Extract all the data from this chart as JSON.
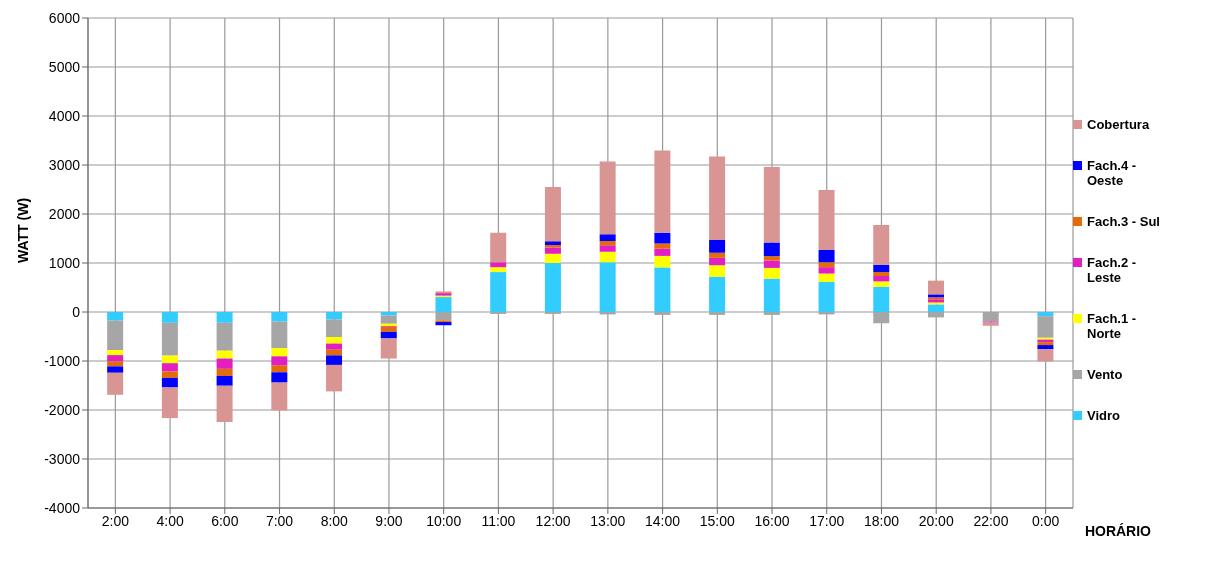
{
  "chart_data": {
    "type": "bar",
    "stacked": true,
    "xlabel": "HORÁRIO",
    "ylabel": "WATT  (W)",
    "categories": [
      "2:00",
      "4:00",
      "6:00",
      "7:00",
      "8:00",
      "9:00",
      "10:00",
      "11:00",
      "12:00",
      "13:00",
      "14:00",
      "15:00",
      "16:00",
      "17:00",
      "18:00",
      "20:00",
      "22:00",
      "0:00"
    ],
    "series": [
      {
        "name": "Vidro",
        "color": "#33ccff",
        "values": [
          -175,
          -220,
          -220,
          -195,
          -150,
          -70,
          305,
          815,
          1000,
          1015,
          910,
          720,
          680,
          615,
          515,
          155,
          null,
          -85
        ]
      },
      {
        "name": "Vento",
        "color": "#a6a6a6",
        "values": [
          -600,
          -670,
          -570,
          -540,
          -360,
          -170,
          -175,
          -40,
          -40,
          -50,
          -60,
          -60,
          -60,
          -50,
          -230,
          -110,
          -195,
          -440
        ]
      },
      {
        "name": "Fach.1 - Norte",
        "color": "#ffff00",
        "values": [
          -105,
          -155,
          -160,
          -170,
          -135,
          -50,
          30,
          100,
          190,
          215,
          235,
          235,
          220,
          170,
          110,
          40,
          null,
          -40
        ]
      },
      {
        "name": "Fach.2 - Leste",
        "color": "#e020c0",
        "values": [
          -130,
          -170,
          -210,
          -190,
          -125,
          -15,
          50,
          100,
          125,
          130,
          150,
          150,
          150,
          130,
          110,
          65,
          -20,
          -50
        ]
      },
      {
        "name": "Fach.3 - Sul",
        "color": "#e36c09",
        "values": [
          -100,
          -130,
          -145,
          -135,
          -115,
          -100,
          -30,
          null,
          50,
          90,
          105,
          105,
          90,
          100,
          80,
          40,
          null,
          -60
        ]
      },
      {
        "name": "Fach.4 - Oeste",
        "color": "#0000ff",
        "values": [
          -130,
          -195,
          -200,
          -210,
          -195,
          -135,
          -65,
          null,
          80,
          135,
          215,
          260,
          280,
          250,
          150,
          60,
          null,
          -85
        ]
      },
      {
        "name": "Cobertura",
        "color": "#d99594",
        "values": [
          -450,
          -625,
          -740,
          -570,
          -540,
          -410,
          35,
          600,
          1105,
          1485,
          1680,
          1705,
          1540,
          1225,
          810,
          280,
          -65,
          -250
        ]
      }
    ],
    "ylim": [
      -4000,
      6000
    ],
    "yticks": [
      -4000,
      -3000,
      -2000,
      -1000,
      0,
      1000,
      2000,
      3000,
      4000,
      5000,
      6000
    ],
    "grid": true,
    "legend": "right"
  }
}
